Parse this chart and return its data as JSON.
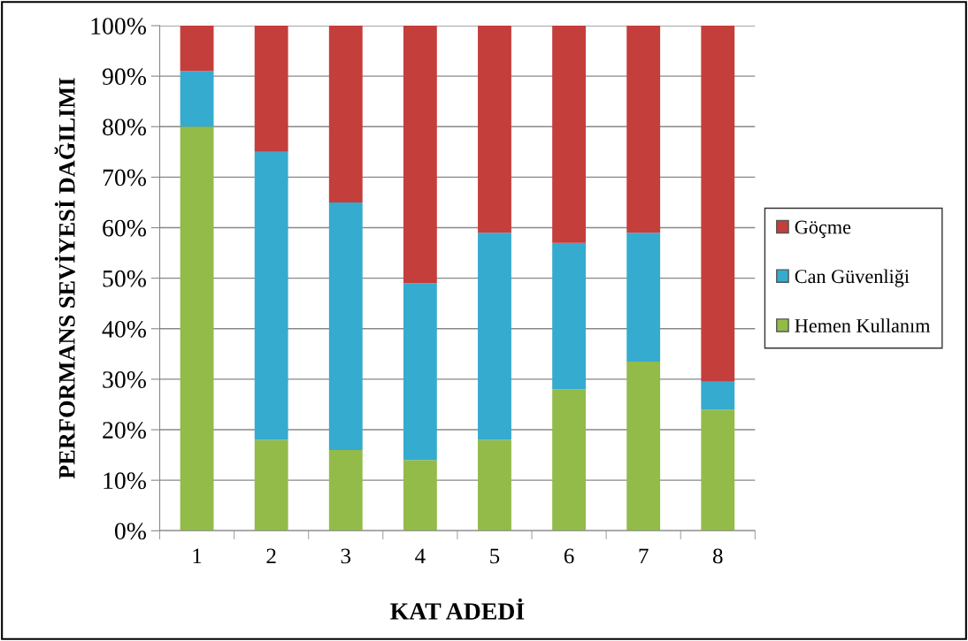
{
  "chart_data": {
    "type": "bar",
    "stacked": true,
    "xlabel": "KAT ADEDİ",
    "ylabel": "PERFORMANS SEVİYESİ DAĞILIMI",
    "categories": [
      "1",
      "2",
      "3",
      "4",
      "5",
      "6",
      "7",
      "8"
    ],
    "series": [
      {
        "name": "Hemen Kullanım",
        "color": "#93bb49",
        "values": [
          80,
          18,
          16,
          14,
          18,
          28,
          33.5,
          24
        ]
      },
      {
        "name": "Can Güvenliği",
        "color": "#35abcf",
        "values": [
          11,
          57,
          49,
          35,
          41,
          29,
          25.5,
          5.5
        ]
      },
      {
        "name": "Göçme",
        "color": "#c43e3b",
        "values": [
          9,
          25,
          35,
          51,
          41,
          43,
          41,
          70.5
        ]
      }
    ],
    "ylim": [
      0,
      100
    ],
    "yticks": [
      {
        "value": 0,
        "label": "0%"
      },
      {
        "value": 10,
        "label": "10%"
      },
      {
        "value": 20,
        "label": "20%"
      },
      {
        "value": 30,
        "label": "30%"
      },
      {
        "value": 40,
        "label": "40%"
      },
      {
        "value": 50,
        "label": "50%"
      },
      {
        "value": 60,
        "label": "60%"
      },
      {
        "value": 70,
        "label": "70%"
      },
      {
        "value": 80,
        "label": "80%"
      },
      {
        "value": 90,
        "label": "90%"
      },
      {
        "value": 100,
        "label": "100%"
      }
    ],
    "grid": "y",
    "legend": "right"
  }
}
